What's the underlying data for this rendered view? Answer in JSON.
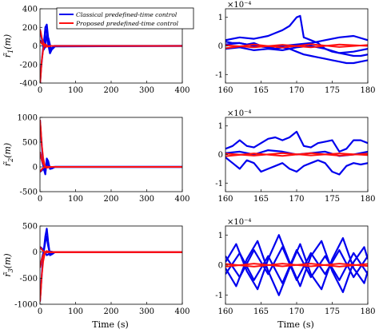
{
  "colors": {
    "classical": "#0000ee",
    "proposed": "#ff1010",
    "axis": "#000000"
  },
  "legend": {
    "classical": "Classical predefined-time control",
    "proposed": "Proposed predefined-time control"
  },
  "chart_data": [
    {
      "id": "left-1",
      "type": "line",
      "ylabel_base": "r̃",
      "ylabel_sub": "1",
      "ylabel_unit": "(m)",
      "xlim": [
        0,
        400
      ],
      "ylim": [
        -400,
        400
      ],
      "xticks": [
        "0",
        "100",
        "200",
        "300",
        "400"
      ],
      "yticks": [
        [
          "400",
          400
        ],
        [
          "200",
          200
        ],
        [
          "0",
          0
        ],
        [
          "-200",
          -200
        ],
        [
          "-400",
          -400
        ]
      ],
      "classical": [
        {
          "x": [
            0,
            3,
            7,
            11,
            15,
            19,
            23,
            28,
            33,
            40,
            400
          ],
          "y": [
            180,
            120,
            40,
            -40,
            200,
            230,
            90,
            -60,
            -30,
            0,
            0
          ]
        },
        {
          "x": [
            0,
            3,
            7,
            11,
            15,
            19,
            23,
            28,
            33,
            40,
            400
          ],
          "y": [
            -420,
            -250,
            -90,
            40,
            180,
            150,
            20,
            -80,
            -40,
            0,
            0
          ]
        },
        {
          "x": [
            0,
            4,
            9,
            14,
            19,
            24,
            30,
            36,
            42,
            400
          ],
          "y": [
            60,
            40,
            10,
            -20,
            120,
            80,
            -20,
            -30,
            -5,
            0
          ]
        }
      ],
      "proposed": [
        {
          "x": [
            0,
            2,
            5,
            9,
            13,
            18,
            24,
            30,
            400
          ],
          "y": [
            -420,
            -320,
            -160,
            -40,
            20,
            10,
            -5,
            0,
            0
          ]
        },
        {
          "x": [
            0,
            2,
            5,
            9,
            13,
            18,
            24,
            30,
            400
          ],
          "y": [
            180,
            150,
            90,
            40,
            10,
            -10,
            -5,
            0,
            0
          ]
        },
        {
          "x": [
            0,
            2,
            5,
            9,
            14,
            20,
            30,
            400
          ],
          "y": [
            60,
            45,
            25,
            10,
            0,
            -5,
            0,
            0
          ]
        }
      ]
    },
    {
      "id": "right-1",
      "type": "line",
      "multiplier": "×10⁻⁴",
      "xlim": [
        160,
        180
      ],
      "ylim": [
        -1.3,
        1.3
      ],
      "xticks": [
        "160",
        "165",
        "170",
        "175",
        "180"
      ],
      "yticks": [
        [
          "1",
          1
        ],
        [
          "0",
          0
        ],
        [
          "-1",
          -1
        ]
      ],
      "classical": [
        {
          "x": [
            160,
            162,
            164,
            166,
            167,
            168,
            169,
            170,
            170.5,
            171,
            172,
            173,
            174,
            175,
            176,
            177,
            178,
            179,
            180
          ],
          "y": [
            0.2,
            0.3,
            0.25,
            0.35,
            0.45,
            0.55,
            0.7,
            1.0,
            1.05,
            0.3,
            0.2,
            0.1,
            -0.1,
            -0.2,
            -0.25,
            -0.3,
            -0.35,
            -0.35,
            -0.3
          ]
        },
        {
          "x": [
            160,
            161,
            162,
            163,
            164,
            165,
            166,
            167,
            168,
            169,
            170,
            171,
            172,
            173,
            174,
            175,
            176,
            177,
            178,
            179,
            180
          ],
          "y": [
            0.15,
            0.1,
            0.1,
            0.05,
            0.1,
            0.0,
            -0.05,
            -0.1,
            -0.05,
            -0.1,
            -0.2,
            -0.3,
            -0.35,
            -0.4,
            -0.45,
            -0.5,
            -0.55,
            -0.6,
            -0.6,
            -0.55,
            -0.5
          ]
        },
        {
          "x": [
            160,
            162,
            164,
            166,
            168,
            170,
            172,
            174,
            176,
            178,
            180
          ],
          "y": [
            0.05,
            0.1,
            0.0,
            -0.05,
            0.0,
            0.05,
            0.1,
            0.2,
            0.3,
            0.35,
            0.2
          ]
        },
        {
          "x": [
            160,
            162,
            164,
            166,
            168,
            170,
            172,
            174,
            176,
            178,
            180
          ],
          "y": [
            -0.1,
            -0.05,
            -0.15,
            -0.1,
            -0.15,
            -0.05,
            0.0,
            -0.1,
            -0.25,
            -0.2,
            -0.1
          ]
        }
      ],
      "proposed": [
        {
          "x": [
            160,
            164,
            168,
            172,
            176,
            180
          ],
          "y": [
            0.02,
            -0.05,
            0.04,
            -0.05,
            0.05,
            0.0
          ]
        },
        {
          "x": [
            160,
            164,
            168,
            172,
            176,
            180
          ],
          "y": [
            -0.08,
            0.05,
            -0.06,
            0.06,
            -0.04,
            0.03
          ]
        }
      ]
    },
    {
      "id": "left-2",
      "type": "line",
      "ylabel_base": "r̃",
      "ylabel_sub": "2",
      "ylabel_unit": "(m)",
      "xlim": [
        0,
        400
      ],
      "ylim": [
        -500,
        1000
      ],
      "xticks": [
        "0",
        "100",
        "200",
        "300",
        "400"
      ],
      "yticks": [
        [
          "1000",
          1000
        ],
        [
          "500",
          500
        ],
        [
          "0",
          0
        ],
        [
          "-500",
          -500
        ]
      ],
      "classical": [
        {
          "x": [
            0,
            3,
            7,
            11,
            15,
            19,
            23,
            28,
            34,
            42,
            400
          ],
          "y": [
            950,
            650,
            250,
            -50,
            -150,
            170,
            120,
            -40,
            -30,
            0,
            0
          ]
        },
        {
          "x": [
            0,
            3,
            7,
            11,
            15,
            19,
            23,
            28,
            34,
            42,
            400
          ],
          "y": [
            300,
            200,
            80,
            -20,
            -120,
            100,
            60,
            -20,
            -10,
            0,
            0
          ]
        },
        {
          "x": [
            0,
            4,
            9,
            14,
            19,
            24,
            30,
            38,
            400
          ],
          "y": [
            -100,
            -80,
            -40,
            0,
            40,
            30,
            -10,
            0,
            0
          ]
        }
      ],
      "proposed": [
        {
          "x": [
            0,
            2,
            5,
            9,
            13,
            18,
            24,
            30,
            400
          ],
          "y": [
            950,
            780,
            450,
            180,
            40,
            -20,
            -10,
            0,
            0
          ]
        },
        {
          "x": [
            0,
            2,
            5,
            9,
            13,
            18,
            24,
            30,
            400
          ],
          "y": [
            300,
            240,
            140,
            60,
            10,
            -10,
            -5,
            0,
            0
          ]
        },
        {
          "x": [
            0,
            2,
            5,
            9,
            14,
            20,
            30,
            400
          ],
          "y": [
            -100,
            -80,
            -50,
            -20,
            0,
            5,
            0,
            0
          ]
        }
      ]
    },
    {
      "id": "right-2",
      "type": "line",
      "multiplier": "×10⁻⁴",
      "xlim": [
        160,
        180
      ],
      "ylim": [
        -1.3,
        1.3
      ],
      "xticks": [
        "160",
        "165",
        "170",
        "175",
        "180"
      ],
      "yticks": [
        [
          "1",
          1
        ],
        [
          "0",
          0
        ],
        [
          "-1",
          -1
        ]
      ],
      "classical": [
        {
          "x": [
            160,
            161,
            162,
            163,
            164,
            165,
            166,
            167,
            168,
            169,
            170,
            171,
            172,
            173,
            174,
            175,
            176,
            177,
            178,
            179,
            180
          ],
          "y": [
            0.2,
            0.3,
            0.5,
            0.3,
            0.25,
            0.4,
            0.55,
            0.6,
            0.5,
            0.6,
            0.8,
            0.3,
            0.25,
            0.4,
            0.45,
            0.5,
            0.1,
            0.2,
            0.5,
            0.5,
            0.4
          ]
        },
        {
          "x": [
            160,
            161,
            162,
            163,
            164,
            165,
            166,
            167,
            168,
            169,
            170,
            171,
            172,
            173,
            174,
            175,
            176,
            177,
            178,
            179,
            180
          ],
          "y": [
            -0.1,
            -0.3,
            -0.5,
            -0.2,
            -0.3,
            -0.6,
            -0.5,
            -0.4,
            -0.3,
            -0.5,
            -0.6,
            -0.4,
            -0.3,
            -0.2,
            -0.3,
            -0.6,
            -0.7,
            -0.4,
            -0.3,
            -0.35,
            -0.3
          ]
        },
        {
          "x": [
            160,
            162,
            164,
            166,
            168,
            170,
            172,
            174,
            176,
            178,
            180
          ],
          "y": [
            0.05,
            0.1,
            0.0,
            0.15,
            0.1,
            0.0,
            0.05,
            0.1,
            -0.05,
            0.0,
            0.1
          ]
        }
      ],
      "proposed": [
        {
          "x": [
            160,
            164,
            168,
            172,
            176,
            180
          ],
          "y": [
            0.03,
            -0.04,
            0.05,
            -0.03,
            0.04,
            -0.02
          ]
        },
        {
          "x": [
            160,
            164,
            168,
            172,
            176,
            180
          ],
          "y": [
            -0.06,
            0.04,
            -0.05,
            0.05,
            -0.04,
            0.03
          ]
        }
      ]
    },
    {
      "id": "left-3",
      "type": "line",
      "ylabel_base": "r̃",
      "ylabel_sub": "3",
      "ylabel_unit": "(m)",
      "xlim": [
        0,
        400
      ],
      "ylim": [
        -1000,
        500
      ],
      "xticks": [
        "0",
        "100",
        "200",
        "300",
        "400"
      ],
      "yticks": [
        [
          "500",
          500
        ],
        [
          "0",
          0
        ],
        [
          "-500",
          -500
        ],
        [
          "-1000",
          -1000
        ]
      ],
      "classical": [
        {
          "x": [
            0,
            3,
            7,
            11,
            15,
            19,
            23,
            28,
            34,
            42,
            400
          ],
          "y": [
            -950,
            -650,
            -250,
            50,
            300,
            450,
            200,
            -60,
            -40,
            0,
            0
          ]
        },
        {
          "x": [
            0,
            3,
            7,
            11,
            15,
            19,
            23,
            28,
            34,
            42,
            400
          ],
          "y": [
            -300,
            -200,
            -80,
            30,
            200,
            300,
            120,
            -40,
            -20,
            0,
            0
          ]
        },
        {
          "x": [
            0,
            4,
            9,
            14,
            19,
            24,
            30,
            38,
            400
          ],
          "y": [
            100,
            80,
            40,
            0,
            -60,
            -40,
            10,
            0,
            0
          ]
        }
      ],
      "proposed": [
        {
          "x": [
            0,
            2,
            5,
            9,
            13,
            18,
            24,
            30,
            400
          ],
          "y": [
            -950,
            -780,
            -450,
            -180,
            -40,
            20,
            10,
            0,
            0
          ]
        },
        {
          "x": [
            0,
            2,
            5,
            9,
            13,
            18,
            24,
            30,
            400
          ],
          "y": [
            -300,
            -240,
            -140,
            -60,
            -10,
            10,
            5,
            0,
            0
          ]
        },
        {
          "x": [
            0,
            2,
            5,
            9,
            14,
            20,
            30,
            400
          ],
          "y": [
            100,
            80,
            50,
            20,
            0,
            -5,
            0,
            0
          ]
        }
      ]
    },
    {
      "id": "right-3",
      "type": "line",
      "multiplier": "×10⁻⁴",
      "xlim": [
        160,
        180
      ],
      "ylim": [
        -1.3,
        1.3
      ],
      "xticks": [
        "160",
        "165",
        "170",
        "175",
        "180"
      ],
      "yticks": [
        [
          "1",
          1
        ],
        [
          "0",
          0
        ],
        [
          "-1",
          -1
        ]
      ],
      "classical": [
        {
          "x": [
            160,
            161.5,
            163,
            164.5,
            166,
            167.5,
            169,
            170.5,
            172,
            173.5,
            175,
            176.5,
            178,
            179.5,
            180
          ],
          "y": [
            0.1,
            0.7,
            -0.2,
            -0.8,
            0.2,
            1.0,
            0.1,
            -0.7,
            0.3,
            0.8,
            -0.2,
            -0.9,
            0.1,
            0.6,
            0.2
          ]
        },
        {
          "x": [
            160,
            161.5,
            163,
            164.5,
            166,
            167.5,
            169,
            170.5,
            172,
            173.5,
            175,
            176.5,
            178,
            179.5,
            180
          ],
          "y": [
            -0.1,
            -0.7,
            0.2,
            0.8,
            -0.2,
            -1.0,
            -0.1,
            0.7,
            -0.3,
            -0.8,
            0.2,
            0.9,
            -0.1,
            -0.6,
            -0.2
          ]
        },
        {
          "x": [
            160,
            162,
            164,
            166,
            168,
            170,
            172,
            174,
            176,
            178,
            180
          ],
          "y": [
            0.3,
            -0.4,
            0.5,
            -0.3,
            0.6,
            -0.5,
            0.4,
            -0.3,
            0.5,
            -0.4,
            0.3
          ]
        },
        {
          "x": [
            160,
            162,
            164,
            166,
            168,
            170,
            172,
            174,
            176,
            178,
            180
          ],
          "y": [
            -0.3,
            0.4,
            -0.5,
            0.3,
            -0.6,
            0.5,
            -0.4,
            0.3,
            -0.5,
            0.4,
            -0.3
          ]
        }
      ],
      "proposed": [
        {
          "x": [
            160,
            164,
            168,
            172,
            176,
            180
          ],
          "y": [
            0.04,
            -0.05,
            0.05,
            -0.04,
            0.05,
            -0.03
          ]
        },
        {
          "x": [
            160,
            164,
            168,
            172,
            176,
            180
          ],
          "y": [
            -0.05,
            0.05,
            -0.04,
            0.05,
            -0.05,
            0.04
          ]
        }
      ]
    }
  ],
  "xlabel": "Time (s)"
}
